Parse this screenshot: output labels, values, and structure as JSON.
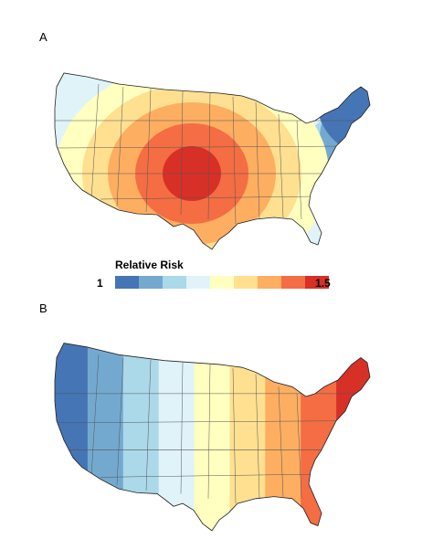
{
  "panels": [
    {
      "label": "A",
      "pattern": "central"
    },
    {
      "label": "B",
      "pattern": "gradient"
    }
  ],
  "legend": {
    "title": "Relative Risk",
    "min_label": "1",
    "max_label": "1.5",
    "colors": [
      "#4575b4",
      "#74a9cf",
      "#abd9e9",
      "#e0f3f8",
      "#ffffbf",
      "#fee090",
      "#fdae61",
      "#f46d43",
      "#d73027"
    ]
  },
  "colors": {
    "state_border": "#555555",
    "outline": "#222222"
  }
}
